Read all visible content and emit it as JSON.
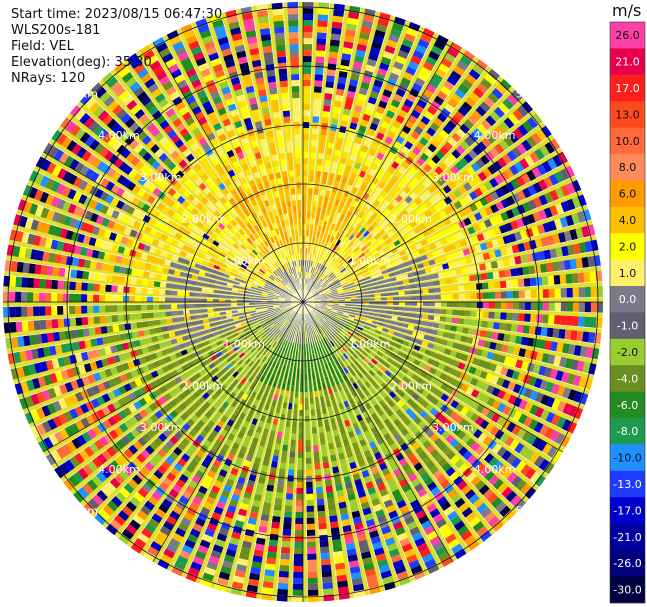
{
  "header": {
    "start_time": "Start time: 2023/08/15 06:47:30",
    "instrument": "WLS200s-181",
    "field": "Field: VEL",
    "elevation": "Elevation(deg): 35.30",
    "nrays": "NRays: 120"
  },
  "range_rings": {
    "labels": [
      "1.00km",
      "2.00km",
      "3.00km",
      "4.00km",
      "5.00km"
    ]
  },
  "colorbar": {
    "unit": "m/s",
    "ticks": [
      "26.0",
      "21.0",
      "17.0",
      "13.0",
      "10.0",
      "8.0",
      "6.0",
      "4.0",
      "2.0",
      "1.0",
      "0.0",
      "-1.0",
      "-2.0",
      "-4.0",
      "-6.0",
      "-8.0",
      "-10.0",
      "-13.0",
      "-17.0",
      "-21.0",
      "-26.0",
      "-30.0"
    ],
    "colors": [
      "#ff3fa8",
      "#e8004c",
      "#ff1e1e",
      "#ff4a1e",
      "#ff6a3a",
      "#ff8a5a",
      "#ff9a00",
      "#ffc000",
      "#ffff00",
      "#fff06a",
      "#7a7a8a",
      "#606070",
      "#9acd32",
      "#6b8e23",
      "#228b22",
      "#1e9a50",
      "#1e90ff",
      "#1e3cff",
      "#0000cd",
      "#0000a0",
      "#000080",
      "#000040"
    ]
  }
}
